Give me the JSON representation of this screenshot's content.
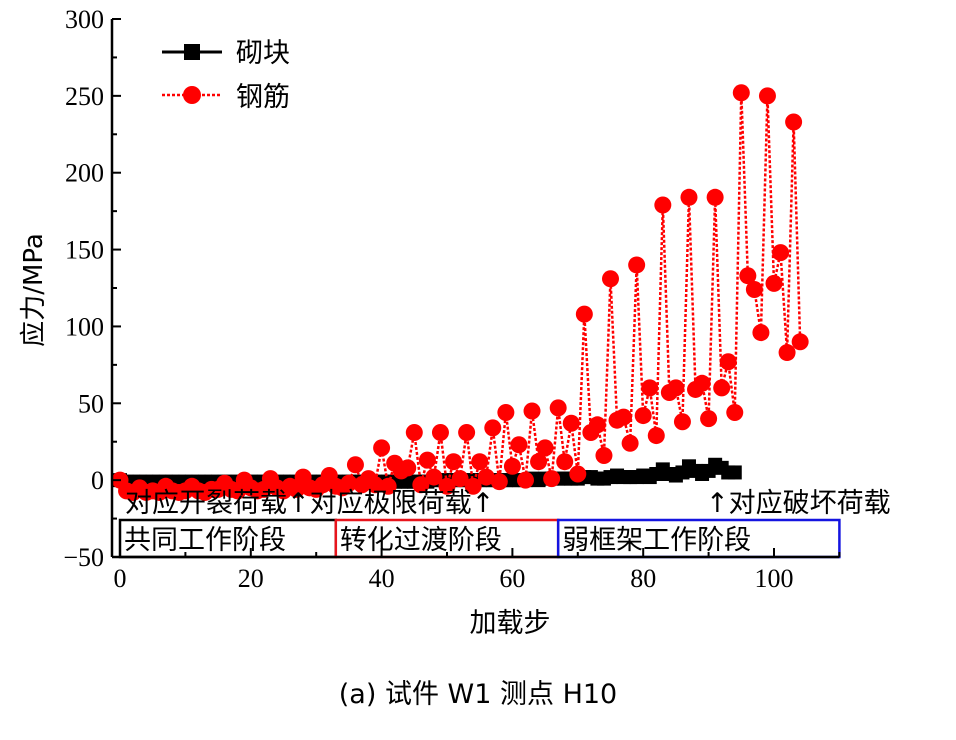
{
  "chart_data": {
    "type": "line",
    "title": "",
    "caption": "(a) 试件 W1 测点 H10",
    "xlabel": "加载步",
    "ylabel": "应力/MPa",
    "xlim": [
      0,
      110
    ],
    "ylim": [
      -50,
      300
    ],
    "xticks": [
      0,
      20,
      40,
      60,
      80,
      100
    ],
    "yticks": [
      -50,
      0,
      50,
      100,
      150,
      200,
      250,
      300
    ],
    "xtick_labels": [
      "0",
      "20",
      "40",
      "60",
      "80",
      "100"
    ],
    "ytick_labels": [
      "−50",
      "0",
      "50",
      "100",
      "150",
      "200",
      "250",
      "300"
    ],
    "legend": {
      "position": "top-left",
      "entries": [
        "砌块",
        "钢筋"
      ]
    },
    "series": [
      {
        "name": "砌块",
        "color": "#000000",
        "marker": "square",
        "x_start": 0,
        "values": [
          0,
          -1,
          -1,
          -1,
          -1,
          -1,
          -1,
          -1,
          -1,
          -1,
          -1,
          -1,
          -1,
          -1,
          -1,
          -1,
          -1,
          -1,
          -1,
          -1,
          -1,
          -1,
          -1,
          -1,
          -1,
          -1,
          -1,
          -1,
          -1,
          -1,
          -1,
          -1,
          -1,
          -1,
          -1,
          -1,
          -1,
          -1,
          -1,
          -1,
          -1,
          -1,
          -1,
          -1,
          -1,
          -1,
          -1,
          -1,
          0,
          0,
          0,
          0,
          0,
          0,
          0,
          0,
          0,
          0,
          0,
          0,
          0,
          0,
          0,
          1,
          0,
          1,
          1,
          1,
          1,
          1,
          1,
          2,
          2,
          1,
          1,
          2,
          3,
          2,
          2,
          2,
          3,
          2,
          4,
          7,
          4,
          3,
          5,
          9,
          6,
          4,
          6,
          10,
          8,
          5,
          5
        ]
      },
      {
        "name": "钢筋",
        "color": "#ff0000",
        "marker": "circle",
        "x_start": 0,
        "values": [
          0,
          -7,
          -8,
          -5,
          -8,
          -7,
          -8,
          -4,
          -7,
          -8,
          -7,
          -4,
          -7,
          -8,
          -6,
          -6,
          -2,
          -6,
          -7,
          0,
          -5,
          -7,
          -6,
          1,
          -5,
          -7,
          -4,
          -6,
          2,
          -5,
          -6,
          -3,
          3,
          -4,
          -5,
          -2,
          10,
          -3,
          1,
          -3,
          21,
          -4,
          11,
          6,
          8,
          31,
          -3,
          13,
          2,
          31,
          -4,
          12,
          1,
          31,
          -4,
          12,
          2,
          34,
          -1,
          44,
          9,
          23,
          0,
          45,
          12,
          21,
          1,
          47,
          12,
          37,
          4,
          108,
          31,
          36,
          16,
          131,
          39,
          41,
          24,
          140,
          42,
          60,
          29,
          179,
          57,
          60,
          38,
          184,
          59,
          63,
          40,
          184,
          60,
          77,
          44,
          252,
          133,
          124,
          96,
          250,
          128,
          148,
          83,
          233,
          90
        ]
      }
    ],
    "annotations": {
      "load_marks_left": "对应开裂荷载↑对应极限荷载↑",
      "load_mark_right": "↑对应破坏荷载",
      "stages": [
        {
          "label": "共同工作阶段",
          "color": "#000000",
          "range": [
            0,
            33
          ]
        },
        {
          "label": "转化过渡阶段",
          "color": "#e8141c",
          "range": [
            33,
            67
          ]
        },
        {
          "label": "弱框架工作阶段",
          "color": "#1414e0",
          "range": [
            67,
            110
          ]
        }
      ]
    }
  }
}
